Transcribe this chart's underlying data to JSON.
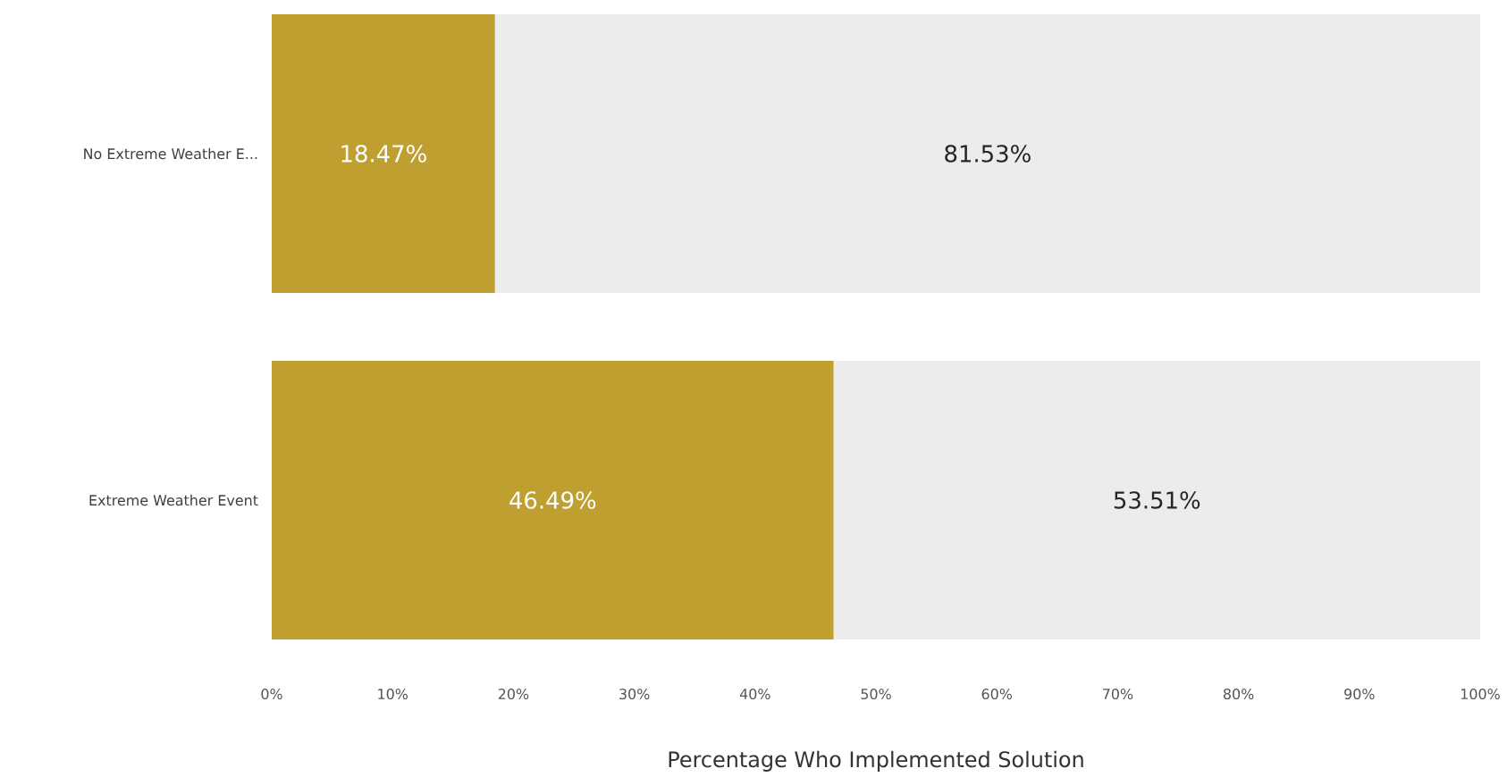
{
  "chart_data": {
    "type": "bar",
    "orientation": "horizontal",
    "stacked": true,
    "categories": [
      "No Extreme Weather E...",
      "Extreme Weather Event"
    ],
    "series": [
      {
        "color": "#bf9f30",
        "values": [
          18.47,
          46.49
        ],
        "value_labels": [
          "18.47%",
          "46.49%"
        ]
      },
      {
        "color": "#ececec",
        "values": [
          81.53,
          53.51
        ],
        "value_labels": [
          "81.53%",
          "53.51%"
        ]
      }
    ],
    "xlim": [
      0,
      100
    ],
    "xticks": [
      {
        "value": 0,
        "label": "0%"
      },
      {
        "value": 10,
        "label": "10%"
      },
      {
        "value": 20,
        "label": "20%"
      },
      {
        "value": 30,
        "label": "30%"
      },
      {
        "value": 40,
        "label": "40%"
      },
      {
        "value": 50,
        "label": "50%"
      },
      {
        "value": 60,
        "label": "60%"
      },
      {
        "value": 70,
        "label": "70%"
      },
      {
        "value": 80,
        "label": "80%"
      },
      {
        "value": 90,
        "label": "90%"
      },
      {
        "value": 100,
        "label": "100%"
      }
    ],
    "xlabel": "Percentage Who Implemented Solution"
  }
}
